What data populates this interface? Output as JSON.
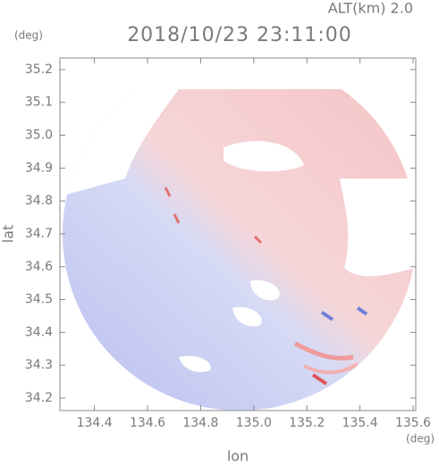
{
  "chart_data": {
    "type": "radar-map",
    "altitude_label": "ALT(km) 2.0",
    "title": "2018/10/23 23:11:00",
    "y_unit": "(deg)",
    "x_unit": "(deg)",
    "xlabel": "lon",
    "ylabel": "lat",
    "xlim": [
      134.27,
      135.61
    ],
    "ylim": [
      34.162,
      35.235
    ],
    "xticks": [
      134.4,
      134.6,
      134.8,
      {
        "value": 135.0,
        "label": "135.0"
      },
      135.2,
      135.4,
      135.6
    ],
    "yticks": [
      34.2,
      34.3,
      34.4,
      34.5,
      34.6,
      34.7,
      34.8,
      34.9,
      {
        "value": 35.0,
        "label": "35.0"
      },
      35.1,
      35.2
    ]
  }
}
